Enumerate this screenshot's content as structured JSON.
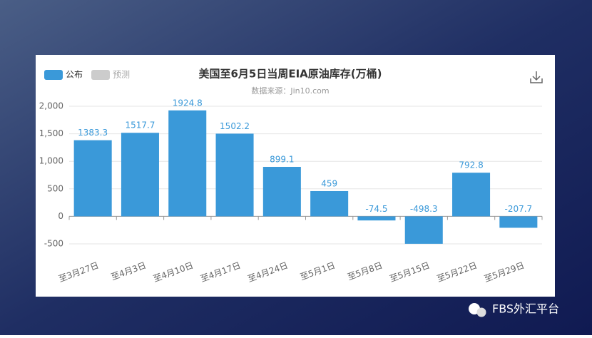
{
  "chart_data": {
    "type": "bar",
    "title": "美国至6月5日当周EIA原油库存(万桶)",
    "subtitle": "数据来源：Jin10.com",
    "categories": [
      "至3月27日",
      "至4月3日",
      "至4月10日",
      "至4月17日",
      "至4月24日",
      "至5月1日",
      "至5月8日",
      "至5月15日",
      "至5月22日",
      "至5月29日"
    ],
    "series": [
      {
        "name": "公布",
        "color": "#3a99d9",
        "values": [
          1383.3,
          1517.7,
          1924.8,
          1502.2,
          899.1,
          459,
          -74.5,
          -498.3,
          792.8,
          -207.7
        ]
      },
      {
        "name": "预测",
        "color": "#cccccc",
        "values": [
          null,
          null,
          null,
          null,
          null,
          null,
          null,
          null,
          null,
          null
        ]
      }
    ],
    "ylim": [
      -500,
      2000
    ],
    "yticks": [
      -500,
      0,
      500,
      {
        "value": 1000,
        "label": "1,000"
      },
      {
        "value": 1500,
        "label": "1,500"
      },
      {
        "value": 2000,
        "label": "2,000"
      }
    ],
    "grid": true
  },
  "watermark": "FBS外汇平台"
}
